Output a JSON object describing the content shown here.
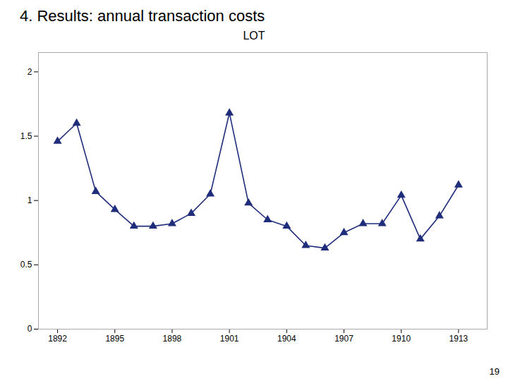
{
  "chart_data": {
    "type": "line",
    "title": "4. Results: annual transaction costs",
    "subtitle": "LOT",
    "annotations": [
      {
        "text": "19"
      }
    ],
    "x": [
      1892,
      1893,
      1894,
      1895,
      1896,
      1897,
      1898,
      1899,
      1900,
      1901,
      1902,
      1903,
      1904,
      1905,
      1906,
      1907,
      1908,
      1909,
      1910,
      1911,
      1912,
      1913
    ],
    "values": [
      1.46,
      1.6,
      1.07,
      0.93,
      0.8,
      0.8,
      0.82,
      0.9,
      1.05,
      1.68,
      0.98,
      0.85,
      0.8,
      0.65,
      0.63,
      0.75,
      0.82,
      0.82,
      1.04,
      0.7,
      0.88,
      1.12
    ],
    "color": "#1f2d7b",
    "marker": "triangle",
    "xlim": [
      1891,
      1914.5
    ],
    "ylim": [
      0,
      2.15
    ],
    "xticks": [
      1892,
      1895,
      1898,
      1901,
      1904,
      1907,
      1910,
      1913
    ],
    "yticks": [
      0,
      0.5,
      1,
      1.5,
      2
    ],
    "grid": false
  }
}
